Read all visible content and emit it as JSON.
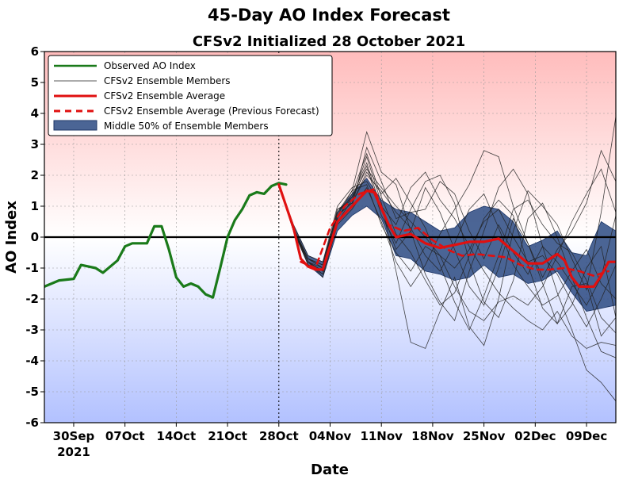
{
  "chart_data": {
    "type": "line",
    "title": "45-Day AO Index Forecast",
    "subtitle": "CFSv2 Initialized 28 October 2021",
    "xlabel": "Date",
    "ylabel": "AO Index",
    "ylim": [
      -6,
      6
    ],
    "xlim": [
      "2021-09-26",
      "2021-12-13"
    ],
    "yticks": [
      -6,
      -5,
      -4,
      -3,
      -2,
      -1,
      0,
      1,
      2,
      3,
      4,
      5,
      6
    ],
    "xticks": [
      {
        "date": "2021-09-30",
        "label": "30Sep",
        "sublabel": "2021"
      },
      {
        "date": "2021-10-07",
        "label": "07Oct"
      },
      {
        "date": "2021-10-14",
        "label": "14Oct"
      },
      {
        "date": "2021-10-21",
        "label": "21Oct"
      },
      {
        "date": "2021-10-28",
        "label": "28Oct"
      },
      {
        "date": "2021-11-04",
        "label": "04Nov"
      },
      {
        "date": "2021-11-11",
        "label": "11Nov"
      },
      {
        "date": "2021-11-18",
        "label": "18Nov"
      },
      {
        "date": "2021-11-25",
        "label": "25Nov"
      },
      {
        "date": "2021-12-02",
        "label": "02Dec"
      },
      {
        "date": "2021-12-09",
        "label": "09Dec"
      }
    ],
    "initialization_date": "2021-10-28",
    "grid": true,
    "legend_position": "top-left",
    "background": "gradient: red above zero, blue below zero",
    "colors": {
      "observed": "#1a7a1a",
      "members": "#222222",
      "average": "#e01010",
      "previous": "#e01010",
      "iqr": "#2b4a82",
      "zero_line": "#000000"
    },
    "legend": [
      {
        "label": "Observed AO Index",
        "style": "observed"
      },
      {
        "label": "CFSv2 Ensemble Members",
        "style": "members"
      },
      {
        "label": "CFSv2 Ensemble Average",
        "style": "average"
      },
      {
        "label": "CFSv2 Ensemble Average (Previous Forecast)",
        "style": "previous"
      },
      {
        "label": "Middle 50% of Ensemble Members",
        "style": "iqr"
      }
    ],
    "series": [
      {
        "name": "Observed AO Index",
        "points": [
          [
            "2021-09-26",
            -1.6
          ],
          [
            "2021-09-28",
            -1.4
          ],
          [
            "2021-09-30",
            -1.35
          ],
          [
            "2021-10-01",
            -0.9
          ],
          [
            "2021-10-03",
            -1.0
          ],
          [
            "2021-10-04",
            -1.15
          ],
          [
            "2021-10-06",
            -0.75
          ],
          [
            "2021-10-07",
            -0.3
          ],
          [
            "2021-10-08",
            -0.2
          ],
          [
            "2021-10-10",
            -0.2
          ],
          [
            "2021-10-11",
            0.35
          ],
          [
            "2021-10-12",
            0.35
          ],
          [
            "2021-10-13",
            -0.4
          ],
          [
            "2021-10-14",
            -1.3
          ],
          [
            "2021-10-15",
            -1.6
          ],
          [
            "2021-10-16",
            -1.5
          ],
          [
            "2021-10-17",
            -1.6
          ],
          [
            "2021-10-18",
            -1.85
          ],
          [
            "2021-10-19",
            -1.95
          ],
          [
            "2021-10-20",
            -1.0
          ],
          [
            "2021-10-21",
            0.0
          ],
          [
            "2021-10-22",
            0.55
          ],
          [
            "2021-10-23",
            0.9
          ],
          [
            "2021-10-24",
            1.35
          ],
          [
            "2021-10-25",
            1.45
          ],
          [
            "2021-10-26",
            1.4
          ],
          [
            "2021-10-27",
            1.65
          ],
          [
            "2021-10-28",
            1.75
          ],
          [
            "2021-10-29",
            1.7
          ]
        ]
      },
      {
        "name": "CFSv2 Ensemble Average",
        "points": [
          [
            "2021-10-28",
            1.7
          ],
          [
            "2021-10-30",
            0.3
          ],
          [
            "2021-10-31",
            -0.7
          ],
          [
            "2021-11-01",
            -0.95
          ],
          [
            "2021-11-02",
            -1.05
          ],
          [
            "2021-11-03",
            -1.05
          ],
          [
            "2021-11-05",
            0.5
          ],
          [
            "2021-11-07",
            1.0
          ],
          [
            "2021-11-09",
            1.5
          ],
          [
            "2021-11-10",
            1.45
          ],
          [
            "2021-11-12",
            0.4
          ],
          [
            "2021-11-13",
            0.0
          ],
          [
            "2021-11-15",
            0.1
          ],
          [
            "2021-11-17",
            -0.2
          ],
          [
            "2021-11-19",
            -0.35
          ],
          [
            "2021-11-21",
            -0.25
          ],
          [
            "2021-11-23",
            -0.15
          ],
          [
            "2021-11-25",
            -0.15
          ],
          [
            "2021-11-27",
            -0.05
          ],
          [
            "2021-11-29",
            -0.45
          ],
          [
            "2021-12-01",
            -0.85
          ],
          [
            "2021-12-03",
            -0.85
          ],
          [
            "2021-12-05",
            -0.55
          ],
          [
            "2021-12-06",
            -0.75
          ],
          [
            "2021-12-07",
            -1.3
          ],
          [
            "2021-12-08",
            -1.6
          ],
          [
            "2021-12-10",
            -1.6
          ],
          [
            "2021-12-11",
            -1.25
          ],
          [
            "2021-12-12",
            -0.8
          ],
          [
            "2021-12-13",
            -0.8
          ]
        ]
      },
      {
        "name": "CFSv2 Ensemble Average (Previous Forecast)",
        "points": [
          [
            "2021-10-31",
            -0.8
          ],
          [
            "2021-11-02",
            -1.0
          ],
          [
            "2021-11-04",
            0.3
          ],
          [
            "2021-11-06",
            1.0
          ],
          [
            "2021-11-08",
            1.4
          ],
          [
            "2021-11-10",
            1.55
          ],
          [
            "2021-11-12",
            0.4
          ],
          [
            "2021-11-14",
            0.2
          ],
          [
            "2021-11-16",
            0.3
          ],
          [
            "2021-11-18",
            -0.1
          ],
          [
            "2021-11-20",
            -0.4
          ],
          [
            "2021-11-22",
            -0.6
          ],
          [
            "2021-11-24",
            -0.55
          ],
          [
            "2021-11-26",
            -0.6
          ],
          [
            "2021-11-28",
            -0.65
          ],
          [
            "2021-11-30",
            -0.9
          ],
          [
            "2021-12-02",
            -1.05
          ],
          [
            "2021-12-04",
            -1.05
          ],
          [
            "2021-12-06",
            -1.0
          ],
          [
            "2021-12-08",
            -1.1
          ],
          [
            "2021-12-10",
            -1.25
          ],
          [
            "2021-12-12",
            -1.1
          ]
        ]
      }
    ],
    "iqr_band": {
      "name": "Middle 50% of Ensemble Members",
      "dates": [
        "2021-10-28",
        "2021-10-30",
        "2021-11-01",
        "2021-11-03",
        "2021-11-05",
        "2021-11-07",
        "2021-11-09",
        "2021-11-11",
        "2021-11-13",
        "2021-11-15",
        "2021-11-17",
        "2021-11-19",
        "2021-11-21",
        "2021-11-23",
        "2021-11-25",
        "2021-11-27",
        "2021-11-29",
        "2021-12-01",
        "2021-12-03",
        "2021-12-05",
        "2021-12-07",
        "2021-12-09",
        "2021-12-11",
        "2021-12-13"
      ],
      "upper": [
        1.7,
        0.4,
        -0.6,
        -0.8,
        0.8,
        1.4,
        1.9,
        1.2,
        0.9,
        0.8,
        0.5,
        0.2,
        0.3,
        0.8,
        1.0,
        0.9,
        0.5,
        -0.3,
        -0.1,
        0.2,
        -0.5,
        -0.6,
        0.5,
        0.2
      ],
      "lower": [
        1.7,
        0.2,
        -0.9,
        -1.3,
        0.2,
        0.7,
        1.0,
        0.6,
        -0.6,
        -0.7,
        -1.1,
        -1.2,
        -1.4,
        -1.3,
        -0.9,
        -1.3,
        -1.2,
        -1.5,
        -1.4,
        -1.1,
        -1.8,
        -2.4,
        -2.3,
        -2.2
      ]
    },
    "ensemble_members": [
      [
        1.7,
        0.3,
        -0.8,
        -1.1,
        0.6,
        1.3,
        2.4,
        0.9,
        -0.4,
        0.2,
        1.6,
        0.8,
        -0.4,
        -1.6,
        -2.2,
        -1.0,
        0.6,
        -0.2,
        -1.5,
        -2.8,
        -1.6,
        -1.5,
        -3.2,
        -2.6
      ],
      [
        1.7,
        0.3,
        -0.7,
        -0.9,
        0.8,
        1.5,
        3.4,
        2.1,
        1.7,
        0.2,
        -1.2,
        -2.1,
        -2.7,
        -1.1,
        0.2,
        1.6,
        2.2,
        1.4,
        -0.3,
        -1.8,
        -3.0,
        -4.3,
        -4.7,
        -5.3
      ],
      [
        1.7,
        0.2,
        -0.8,
        -1.0,
        0.9,
        1.2,
        2.6,
        1.1,
        -1.1,
        -3.4,
        -3.6,
        -2.4,
        -1.3,
        -2.9,
        -3.5,
        -2.0,
        0.2,
        1.5,
        1.0,
        0.4,
        -0.7,
        -1.7,
        0.8,
        3.9
      ],
      [
        1.7,
        0.3,
        -0.9,
        -1.2,
        0.5,
        1.0,
        2.9,
        1.8,
        0.6,
        0.8,
        0.9,
        1.8,
        1.4,
        0.2,
        -0.7,
        0.4,
        -0.5,
        -1.2,
        -0.3,
        -0.8,
        -1.5,
        -2.2,
        -1.3,
        0.7
      ],
      [
        1.7,
        0.2,
        -0.7,
        -1.0,
        0.7,
        1.1,
        2.1,
        1.4,
        1.9,
        1.1,
        0.3,
        -0.9,
        -2.1,
        -3.0,
        -1.9,
        -0.6,
        0.9,
        1.2,
        0.4,
        -0.2,
        -0.5,
        -1.4,
        -2.6,
        -3.1
      ],
      [
        1.7,
        0.4,
        -0.6,
        -0.8,
        1.0,
        1.6,
        1.8,
        1.0,
        0.4,
        1.6,
        2.1,
        1.2,
        0.6,
        -0.3,
        -1.1,
        -1.8,
        -2.3,
        -2.7,
        -3.0,
        -2.4,
        -3.2,
        -3.6,
        -3.4,
        -3.5
      ],
      [
        1.7,
        0.3,
        -0.8,
        -1.3,
        0.4,
        0.9,
        1.6,
        0.5,
        -0.8,
        -1.6,
        -0.9,
        0.1,
        0.9,
        1.7,
        2.8,
        2.6,
        1.0,
        -0.2,
        -1.3,
        -0.4,
        0.2,
        1.1,
        2.8,
        1.8
      ],
      [
        1.7,
        0.2,
        -0.9,
        -1.1,
        0.6,
        1.4,
        2.7,
        1.3,
        0.1,
        -0.5,
        -1.4,
        -2.2,
        -1.8,
        -0.6,
        0.6,
        1.2,
        0.7,
        -0.9,
        -2.3,
        -2.8,
        -2.2,
        -1.0,
        -0.3,
        -2.6
      ],
      [
        1.7,
        0.3,
        -0.7,
        -1.0,
        0.8,
        1.3,
        2.2,
        1.6,
        1.0,
        0.5,
        0.0,
        -0.6,
        -1.0,
        -0.4,
        0.5,
        0.9,
        0.0,
        -0.8,
        -0.6,
        -1.2,
        -2.1,
        -2.9,
        -2.0,
        -0.9
      ],
      [
        1.7,
        0.2,
        -0.8,
        -1.2,
        0.5,
        1.2,
        2.3,
        0.7,
        -0.2,
        0.9,
        1.8,
        2.0,
        1.1,
        -0.8,
        -2.1,
        -2.6,
        -1.4,
        0.6,
        1.1,
        0.0,
        -1.3,
        -2.6,
        -3.7,
        -3.9
      ],
      [
        1.7,
        0.3,
        -0.8,
        -1.1,
        0.7,
        1.5,
        1.7,
        0.4,
        -0.5,
        -1.1,
        -0.3,
        -0.6,
        -1.6,
        -2.4,
        -2.7,
        -2.1,
        -1.9,
        -2.2,
        -1.6,
        -0.6,
        0.5,
        1.4,
        2.2,
        0.8
      ],
      [
        1.7,
        0.2,
        -0.7,
        -0.9,
        0.9,
        1.1,
        2.0,
        1.5,
        0.8,
        0.3,
        -0.6,
        -1.1,
        -0.2,
        0.9,
        1.4,
        0.3,
        -0.9,
        -1.6,
        -2.2,
        -1.9,
        -1.1,
        -0.4,
        -1.5,
        -2.0
      ]
    ]
  }
}
